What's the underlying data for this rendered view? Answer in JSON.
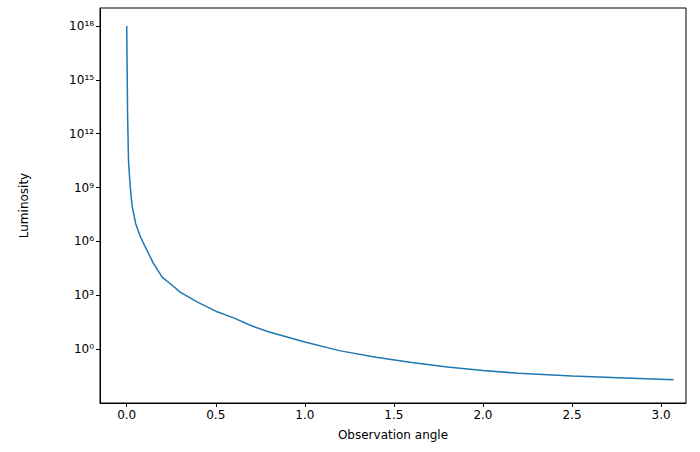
{
  "chart_data": {
    "type": "line",
    "x_label": "Observation angle",
    "y_label": "Luminosity",
    "log": "y",
    "grid": false,
    "color": "#1f77b4",
    "x": [
      0,
      0.002,
      0.005,
      0.01,
      0.02,
      0.03,
      0.05,
      0.075,
      0.1,
      0.15,
      0.2,
      0.25,
      0.3,
      0.4,
      0.5,
      0.6,
      0.7,
      0.8,
      1.0,
      1.2,
      1.4,
      1.6,
      1.8,
      2.0,
      2.2,
      2.5,
      2.8,
      3.07
    ],
    "values": [
      1e+18,
      1e+16,
      10000000000000.0,
      30000000000.0,
      1000000000.0,
      100000000.0,
      10000000.0,
      2000000.0,
      600000.0,
      60000.0,
      10000.0,
      4000.0,
      1500.0,
      400,
      130,
      55,
      20,
      9,
      2.5,
      0.8,
      0.35,
      0.18,
      0.1,
      0.065,
      0.045,
      0.032,
      0.025,
      0.02
    ],
    "xlim": [
      -0.15,
      3.14
    ],
    "xticks": [
      {
        "value": 0,
        "label": "0.0"
      },
      {
        "value": 0.5,
        "label": "0.5"
      },
      {
        "value": 1,
        "label": "1.0"
      },
      {
        "value": 1.5,
        "label": "1.5"
      },
      {
        "value": 2,
        "label": "2.0"
      },
      {
        "value": 2.5,
        "label": "2.5"
      },
      {
        "value": 3,
        "label": "3.0"
      }
    ],
    "ylim": [
      0.001,
      1e+19
    ],
    "yticks": [
      {
        "value": 1,
        "label": "10⁰"
      },
      {
        "value": 1000,
        "label": "10³"
      },
      {
        "value": 1000000,
        "label": "10⁶"
      },
      {
        "value": 1000000000,
        "label": "10⁹"
      },
      {
        "value": 1000000000000,
        "label": "10¹²"
      },
      {
        "value": 1000000000000000,
        "label": "10¹⁵"
      },
      {
        "value": 1000000000000000000,
        "label": "10¹⁸"
      }
    ]
  }
}
